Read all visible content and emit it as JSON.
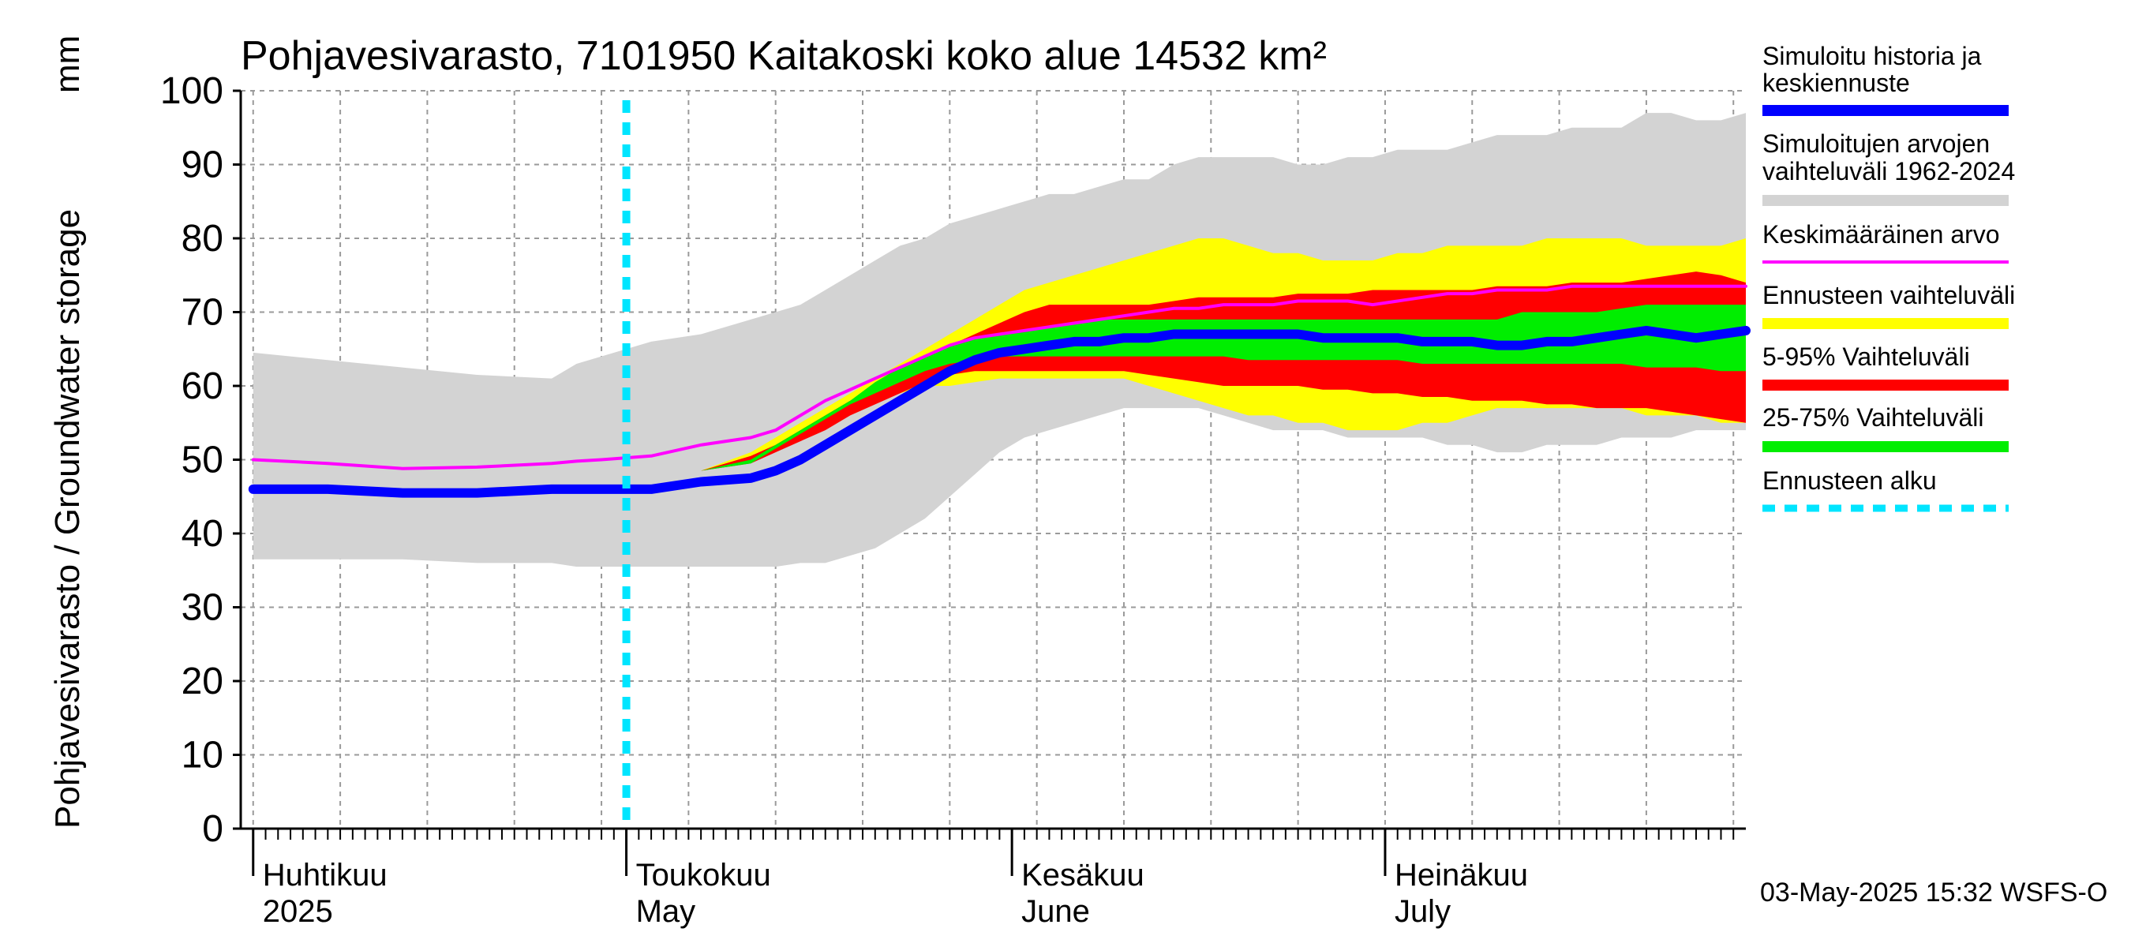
{
  "chart_data": {
    "type": "area",
    "title": "Pohjavesivarasto, 7101950 Kaitakoski koko alue 14532 km²",
    "ylabel": "Pohjavesivarasto / Groundwater storage",
    "yunit": "mm",
    "ylim": [
      0,
      100
    ],
    "yticks": [
      0,
      10,
      20,
      30,
      40,
      50,
      60,
      70,
      80,
      90,
      100
    ],
    "xlim_days": [
      -1,
      120
    ],
    "grid": true,
    "month_labels": [
      {
        "fi": "Huhtikuu",
        "en": "2025",
        "day": 0
      },
      {
        "fi": "Toukokuu",
        "en": "May",
        "day": 30
      },
      {
        "fi": "Kesäkuu",
        "en": "June",
        "day": 61
      },
      {
        "fi": "Heinäkuu",
        "en": "July",
        "day": 91
      }
    ],
    "forecast_start_day": 30,
    "timestamp": "03-May-2025 15:32 WSFS-O",
    "x_days": [
      0,
      6,
      12,
      18,
      24,
      26,
      28,
      32,
      36,
      40,
      42,
      44,
      46,
      48,
      50,
      52,
      54,
      56,
      58,
      60,
      62,
      64,
      66,
      68,
      70,
      72,
      74,
      76,
      78,
      80,
      82,
      84,
      86,
      88,
      90,
      92,
      94,
      96,
      98,
      100,
      102,
      104,
      106,
      108,
      110,
      112,
      114,
      116,
      118,
      120
    ],
    "series": [
      {
        "name": "Simuloitujen arvojen vaihteluväli 1962-2024 (max)",
        "color": "#d3d3d3",
        "values": [
          64.5,
          63.5,
          62.5,
          61.5,
          61,
          63,
          64,
          66,
          67,
          69,
          70,
          71,
          73,
          75,
          77,
          79,
          80,
          82,
          83,
          84,
          85,
          86,
          86,
          87,
          88,
          88,
          90,
          91,
          91,
          91,
          91,
          90,
          90,
          91,
          91,
          92,
          92,
          92,
          93,
          94,
          94,
          94,
          95,
          95,
          95,
          97,
          97,
          96,
          96,
          97
        ]
      },
      {
        "name": "Simuloitujen arvojen vaihteluväli 1962-2024 (min)",
        "color": "#d3d3d3",
        "values": [
          36.5,
          36.5,
          36.5,
          36,
          36,
          35.5,
          35.5,
          35.5,
          35.5,
          35.5,
          35.5,
          36,
          36,
          37,
          38,
          40,
          42,
          45,
          48,
          51,
          53,
          54,
          55,
          56,
          57,
          57,
          57,
          57,
          56,
          55,
          54,
          54,
          54,
          53,
          53,
          53,
          53,
          52,
          52,
          51,
          51,
          52,
          52,
          52,
          53,
          53,
          53,
          54,
          54,
          54
        ]
      },
      {
        "name": "Ennusteen vaihteluväli (max)",
        "color": "#ffff00",
        "values": [
          null,
          null,
          null,
          null,
          null,
          null,
          null,
          null,
          48.5,
          51,
          53,
          55,
          57,
          59,
          61,
          63,
          65,
          67,
          69,
          71,
          73,
          74,
          75,
          76,
          77,
          78,
          79,
          80,
          80,
          79,
          78,
          78,
          77,
          77,
          77,
          78,
          78,
          79,
          79,
          79,
          79,
          80,
          80,
          80,
          80,
          79,
          79,
          79,
          79,
          80
        ]
      },
      {
        "name": "Ennusteen vaihteluväli (min)",
        "color": "#ffff00",
        "values": [
          null,
          null,
          null,
          null,
          null,
          null,
          null,
          null,
          48.5,
          50,
          51,
          53,
          55,
          57,
          58,
          59,
          60,
          60,
          60.5,
          61,
          61,
          61,
          61,
          61,
          61,
          60,
          59,
          58,
          57,
          56,
          56,
          55,
          55,
          54,
          54,
          54,
          55,
          55,
          56,
          57,
          57,
          57,
          57,
          57,
          57,
          56,
          56,
          56,
          55,
          55
        ]
      },
      {
        "name": "5-95% Vaihteluväli (max)",
        "color": "#ff0000",
        "values": [
          null,
          null,
          null,
          null,
          null,
          null,
          null,
          null,
          48.5,
          50.5,
          52,
          54,
          56,
          58,
          60,
          62,
          64,
          65.5,
          67,
          68.5,
          70,
          71,
          71,
          71,
          71,
          71,
          71.5,
          72,
          72,
          72,
          72,
          72.5,
          72.5,
          72.5,
          73,
          73,
          73,
          73,
          73,
          73.5,
          73.5,
          73.5,
          74,
          74,
          74,
          74.5,
          75,
          75.5,
          75,
          74
        ]
      },
      {
        "name": "5-95% Vaihteluväli (min)",
        "color": "#ff0000",
        "values": [
          null,
          null,
          null,
          null,
          null,
          null,
          null,
          null,
          48.5,
          49.5,
          51,
          52.5,
          54,
          56,
          57.5,
          59,
          60.5,
          61.5,
          62,
          62,
          62,
          62,
          62,
          62,
          62,
          61.5,
          61,
          60.5,
          60,
          60,
          60,
          60,
          59.5,
          59.5,
          59,
          59,
          58.5,
          58.5,
          58,
          58,
          58,
          57.5,
          57.5,
          57,
          57,
          57,
          56.5,
          56,
          55.5,
          55
        ]
      },
      {
        "name": "25-75% Vaihteluväli (max)",
        "color": "#00ee00",
        "values": [
          null,
          null,
          null,
          null,
          null,
          null,
          null,
          null,
          48.5,
          50,
          52,
          54,
          56,
          58,
          60.5,
          62.5,
          64,
          65.5,
          66.5,
          67,
          67.5,
          68,
          68.5,
          69,
          69,
          69,
          69,
          69,
          69,
          69,
          69,
          69,
          69,
          69,
          69,
          69,
          69,
          69,
          69,
          69,
          70,
          70,
          70,
          70,
          70.5,
          71,
          71,
          71,
          71,
          71
        ]
      },
      {
        "name": "25-75% Vaihteluväli (min)",
        "color": "#00ee00",
        "values": [
          null,
          null,
          null,
          null,
          null,
          null,
          null,
          null,
          48.5,
          49.5,
          51.5,
          53.5,
          55.5,
          57.5,
          59,
          60.5,
          62,
          63,
          63.5,
          64,
          64,
          64,
          64,
          64,
          64,
          64,
          64,
          64,
          64,
          63.5,
          63.5,
          63.5,
          63.5,
          63.5,
          63.5,
          63.5,
          63,
          63,
          63,
          63,
          63,
          63,
          63,
          63,
          63,
          62.5,
          62.5,
          62.5,
          62,
          62
        ]
      },
      {
        "name": "Simuloitu historia ja keskiennuste",
        "color": "#0000ff",
        "values": [
          46,
          46,
          45.5,
          45.5,
          46,
          46,
          46,
          46,
          47,
          47.5,
          48.5,
          50,
          52,
          54,
          56,
          58,
          60,
          62,
          63.5,
          64.5,
          65,
          65.5,
          66,
          66,
          66.5,
          66.5,
          67,
          67,
          67,
          67,
          67,
          67,
          66.5,
          66.5,
          66.5,
          66.5,
          66,
          66,
          66,
          65.5,
          65.5,
          66,
          66,
          66.5,
          67,
          67.5,
          67,
          66.5,
          67,
          67.5
        ]
      },
      {
        "name": "Keskimääräinen arvo",
        "color": "#ff00ff",
        "values": [
          50,
          49.5,
          48.8,
          49,
          49.5,
          49.8,
          50,
          50.5,
          52,
          53,
          54,
          56,
          58,
          59.5,
          61,
          62.5,
          64,
          65.5,
          66.5,
          67,
          67.5,
          68,
          68.5,
          69,
          69.5,
          70,
          70.5,
          70.5,
          71,
          71,
          71,
          71.5,
          71.5,
          71.5,
          71,
          71.5,
          72,
          72.5,
          72.5,
          73,
          73,
          73,
          73.5,
          73.5,
          73.5,
          73.5,
          73.5,
          73.5,
          73.5,
          73.5
        ]
      }
    ],
    "legend": [
      {
        "label": "Simuloitu historia ja keskiennuste",
        "color": "#0000ff",
        "style": "solid-thick"
      },
      {
        "label": "Simuloitujen arvojen vaihteluväli 1962-2024",
        "color": "#d3d3d3",
        "style": "solid-thick"
      },
      {
        "label": "Keskimääräinen arvo",
        "color": "#ff00ff",
        "style": "solid-thin"
      },
      {
        "label": "Ennusteen vaihteluväli",
        "color": "#ffff00",
        "style": "solid-thick"
      },
      {
        "label": "5-95% Vaihteluväli",
        "color": "#ff0000",
        "style": "solid-thick"
      },
      {
        "label": "25-75% Vaihteluväli",
        "color": "#00ee00",
        "style": "solid-thick"
      },
      {
        "label": "Ennusteen alku",
        "color": "#00e5ff",
        "style": "dashed"
      }
    ]
  }
}
